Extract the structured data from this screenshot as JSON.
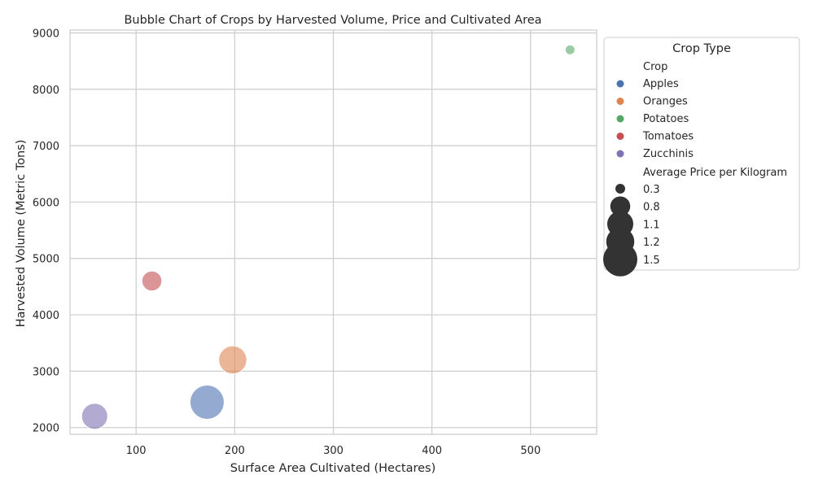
{
  "chart_data": {
    "type": "scatter",
    "title": "Bubble Chart of Crops by Harvested Volume, Price and Cultivated Area",
    "xlabel": "Surface Area Cultivated (Hectares)",
    "ylabel": "Harvested Volume (Metric Tons)",
    "xlim": [
      33,
      567
    ],
    "ylim": [
      1880,
      9050
    ],
    "xticks": [
      100,
      200,
      300,
      400,
      500
    ],
    "yticks": [
      2000,
      3000,
      4000,
      5000,
      6000,
      7000,
      8000,
      9000
    ],
    "grid": true,
    "legend": {
      "title": "Crop Type",
      "position": "outside-right",
      "hue_title": "Crop",
      "size_title": "Average Price per Kilogram",
      "size_labels": [
        "0.3",
        "0.8",
        "1.1",
        "1.2",
        "1.5"
      ],
      "size_values": [
        0.3,
        0.8,
        1.1,
        1.2,
        1.5
      ]
    },
    "series": [
      {
        "name": "Apples",
        "color": "#4c72b0",
        "points": [
          {
            "x": 172,
            "y": 2450,
            "size": 1.5
          }
        ]
      },
      {
        "name": "Oranges",
        "color": "#dd8452",
        "points": [
          {
            "x": 198,
            "y": 3200,
            "size": 1.2
          }
        ]
      },
      {
        "name": "Potatoes",
        "color": "#55a868",
        "points": [
          {
            "x": 540,
            "y": 8700,
            "size": 0.3
          }
        ]
      },
      {
        "name": "Tomatoes",
        "color": "#c44e52",
        "points": [
          {
            "x": 116,
            "y": 4600,
            "size": 0.8
          }
        ]
      },
      {
        "name": "Zucchinis",
        "color": "#8172b3",
        "points": [
          {
            "x": 58,
            "y": 2200,
            "size": 1.1
          }
        ]
      }
    ]
  }
}
